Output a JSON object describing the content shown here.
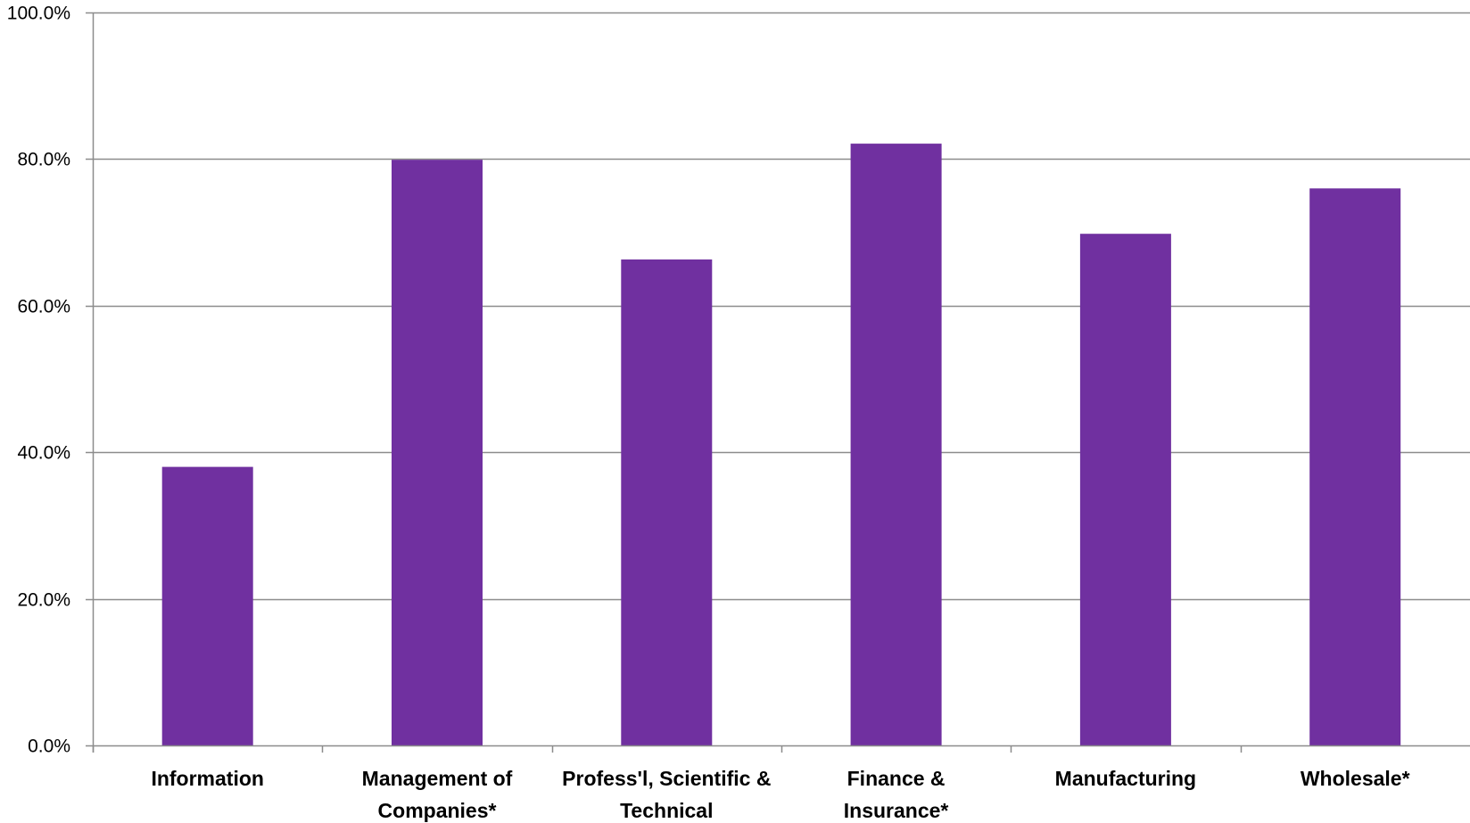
{
  "chart_data": {
    "type": "bar",
    "title": "",
    "xlabel": "",
    "ylabel": "",
    "categories": [
      [
        "Information"
      ],
      [
        "Management of",
        "Companies*"
      ],
      [
        "Profess'l, Scientific &",
        "Technical"
      ],
      [
        "Finance &",
        "Insurance*"
      ],
      [
        "Manufacturing"
      ],
      [
        "Wholesale*"
      ]
    ],
    "values": [
      38.0,
      79.9,
      66.3,
      82.1,
      69.8,
      76.0
    ],
    "ylim": [
      0,
      100
    ],
    "yticks": [
      0,
      20,
      40,
      60,
      80,
      100
    ],
    "ytick_labels": [
      "0.0%",
      "20.0%",
      "40.0%",
      "60.0%",
      "80.0%",
      "100.0%"
    ],
    "grid": true,
    "legend": "none",
    "colors": {
      "bar": "#7030A0",
      "gridline": "#8C8C8C",
      "axis": "#8C8C8C"
    }
  }
}
